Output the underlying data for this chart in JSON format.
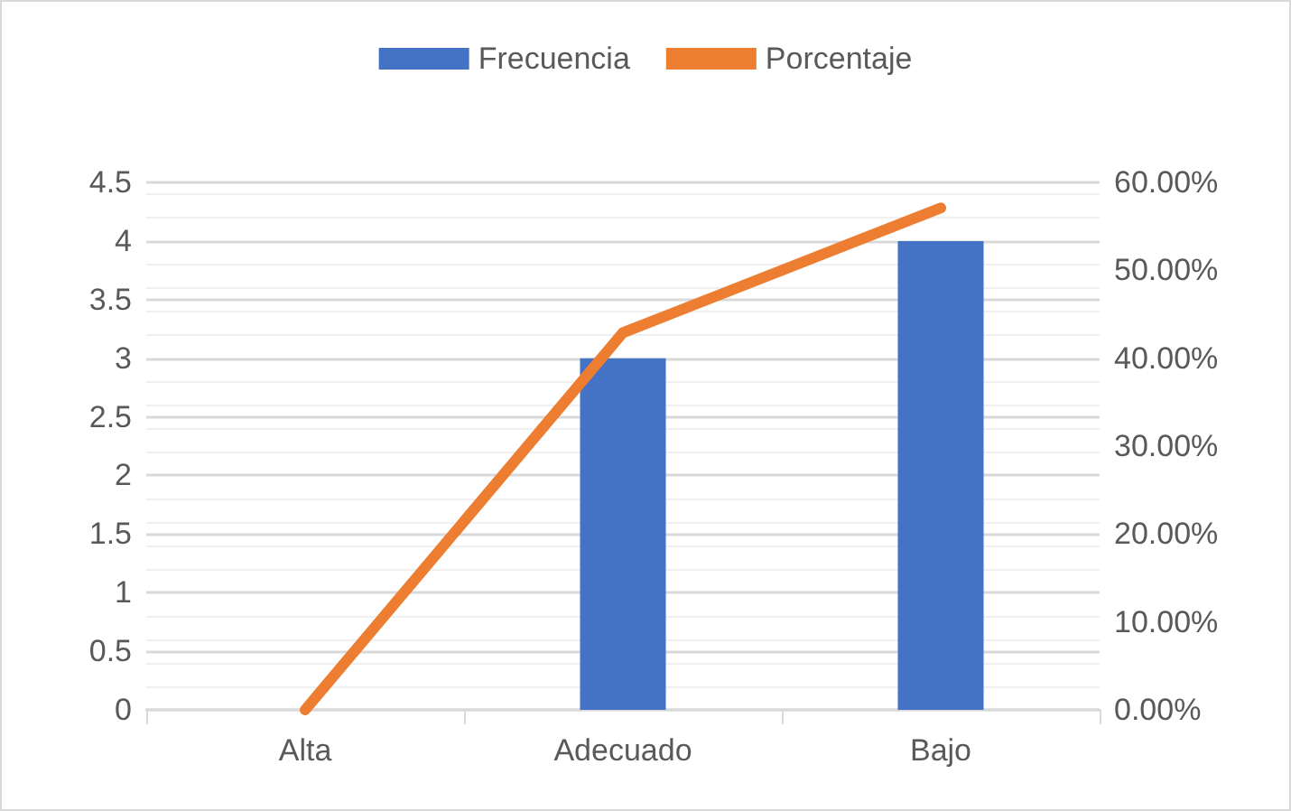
{
  "chart_data": {
    "type": "bar",
    "categories": [
      "Alta",
      "Adecuado",
      "Bajo"
    ],
    "series": [
      {
        "name": "Frecuencia",
        "color": "#4472c4",
        "values": [
          0,
          3,
          4
        ]
      },
      {
        "name": "Porcentaje",
        "type": "line",
        "axis": "y2",
        "color": "#ed7d31",
        "values": [
          0,
          42.9,
          57.1
        ]
      }
    ],
    "ylim": [
      0,
      4.5
    ],
    "yticks": [
      0,
      0.5,
      1,
      1.5,
      2,
      2.5,
      3,
      3.5,
      4,
      4.5
    ],
    "y2lim": [
      0,
      60
    ],
    "y2ticks": [
      {
        "value": 0,
        "label": "0.00%"
      },
      {
        "value": 10,
        "label": "10.00%"
      },
      {
        "value": 20,
        "label": "20.00%"
      },
      {
        "value": 30,
        "label": "30.00%"
      },
      {
        "value": 40,
        "label": "40.00%"
      },
      {
        "value": 50,
        "label": "50.00%"
      },
      {
        "value": 60,
        "label": "60.00%"
      }
    ],
    "grid": true,
    "legend": "top",
    "marker": "none",
    "line_style": "solid"
  }
}
